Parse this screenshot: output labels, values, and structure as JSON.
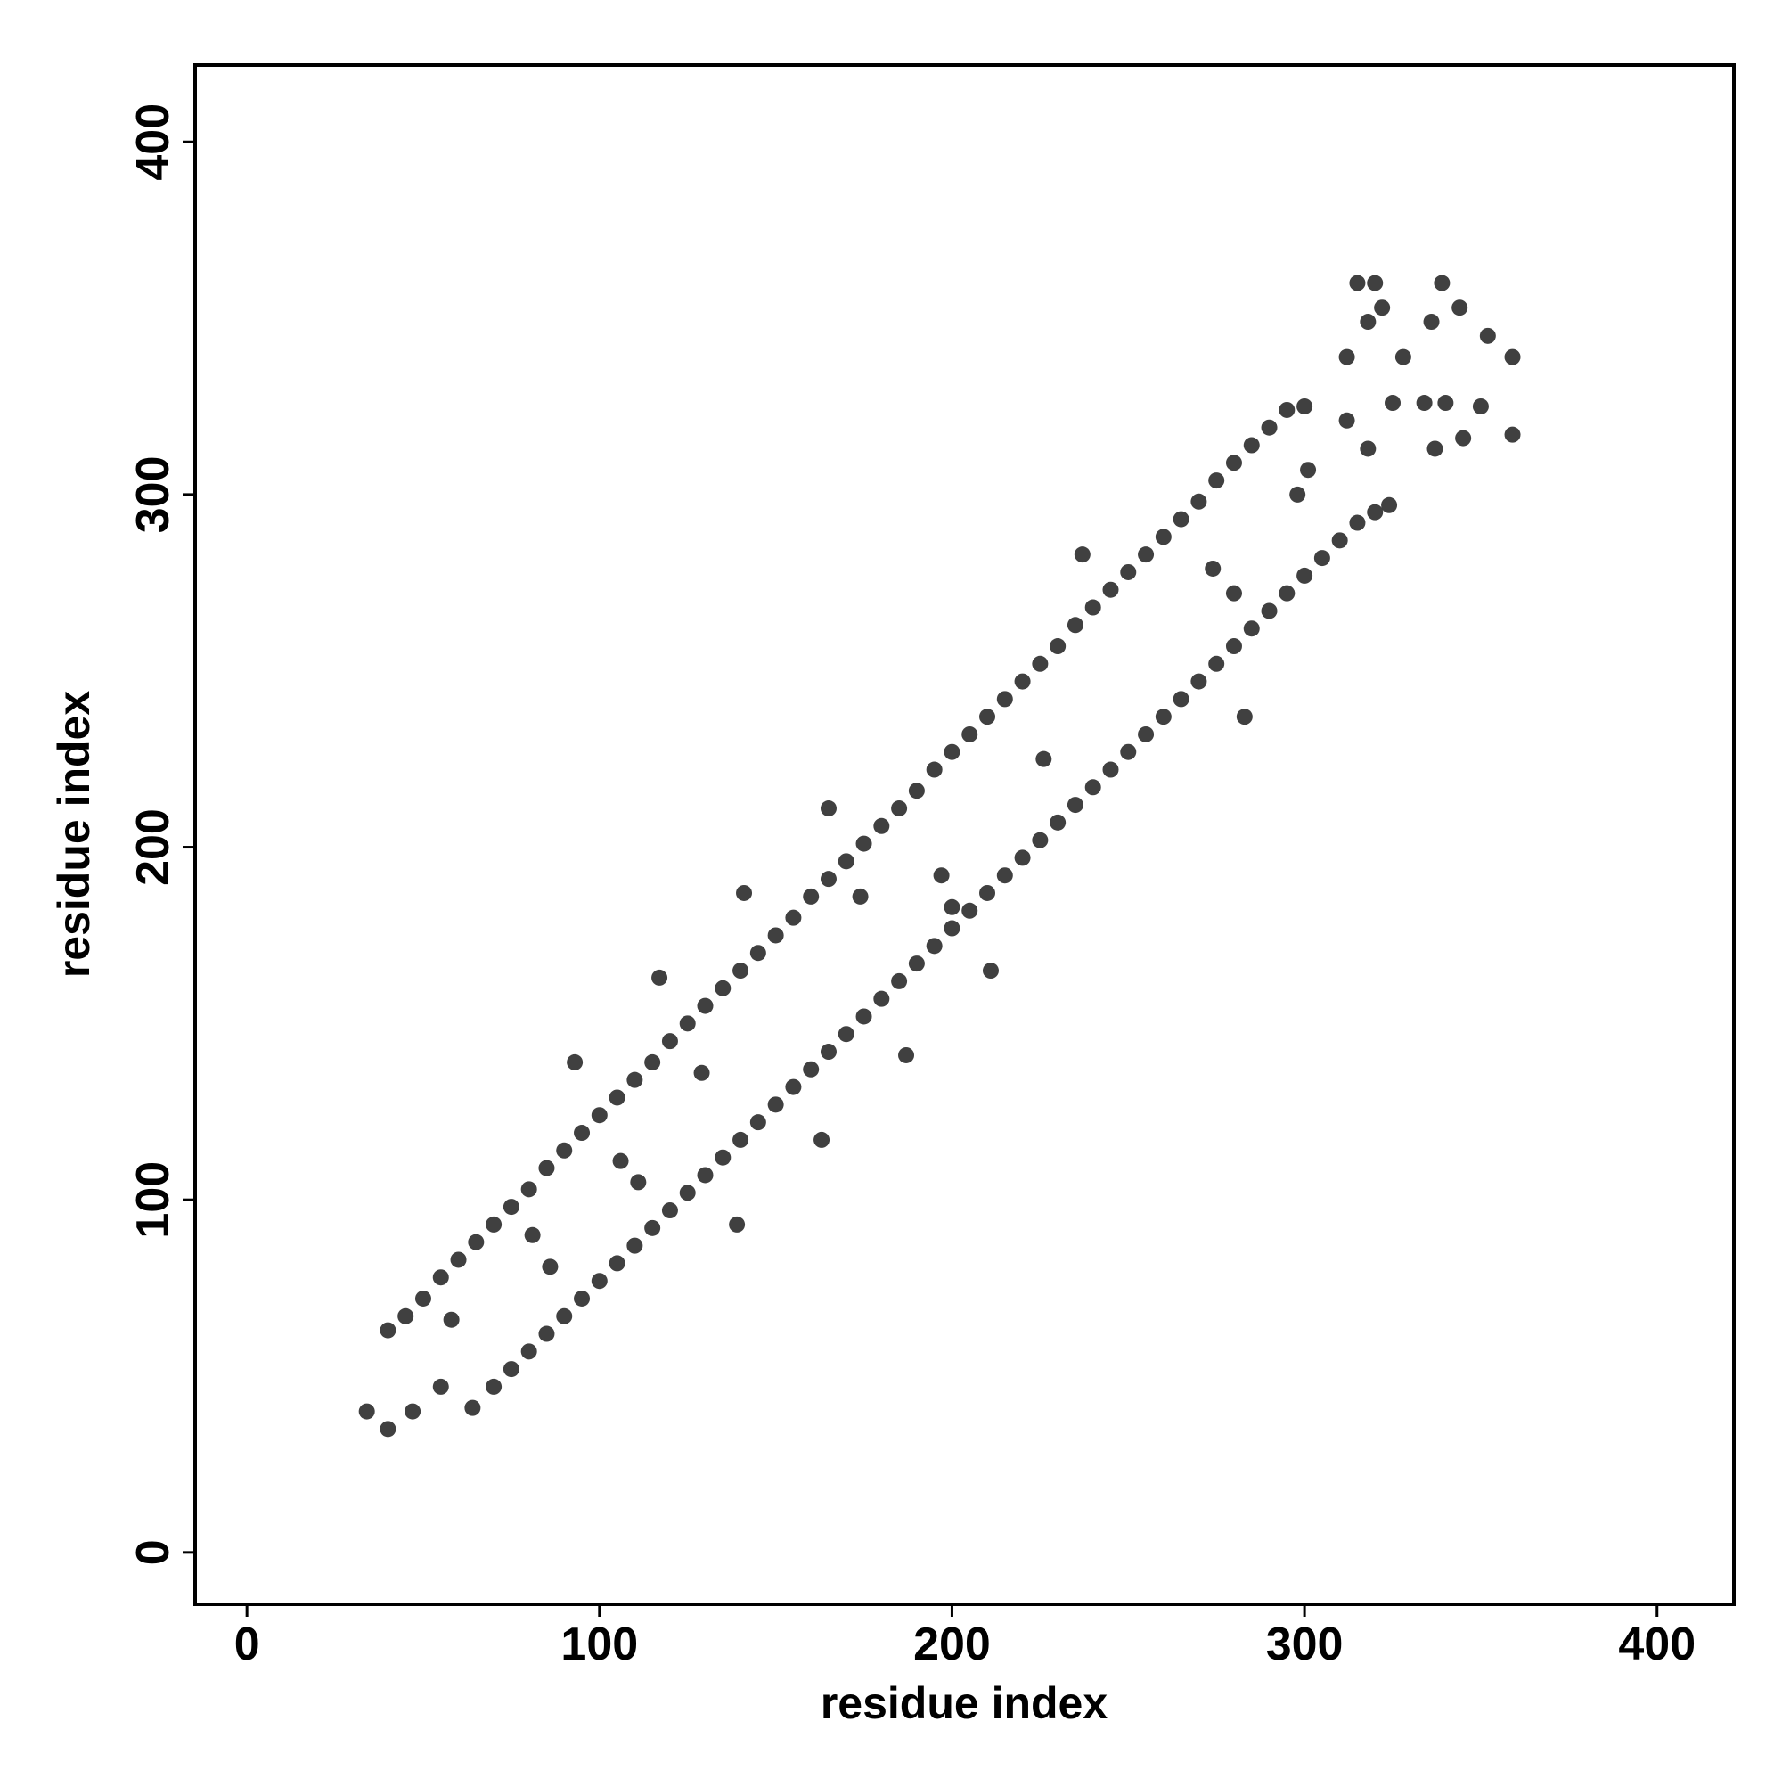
{
  "chart_data": {
    "type": "scatter",
    "xlabel": "residue index",
    "ylabel": "residue index",
    "xlim": [
      -14.7,
      421.8
    ],
    "ylim": [
      -14.7,
      421.8
    ],
    "xticks": [
      0,
      100,
      200,
      300,
      400
    ],
    "yticks": [
      0,
      100,
      200,
      300,
      400
    ],
    "color": "#2b2b2b",
    "x": [
      40,
      45,
      50,
      55,
      60,
      65,
      70,
      75,
      80,
      85,
      90,
      95,
      100,
      105,
      110,
      115,
      120,
      125,
      130,
      135,
      140,
      145,
      150,
      155,
      160,
      165,
      170,
      175,
      180,
      185,
      190,
      195,
      200,
      205,
      210,
      215,
      220,
      225,
      230,
      235,
      240,
      245,
      250,
      255,
      260,
      265,
      270,
      275,
      280,
      285,
      290,
      295,
      64,
      70,
      75,
      80,
      85,
      90,
      95,
      100,
      105,
      110,
      115,
      120,
      125,
      130,
      135,
      140,
      145,
      150,
      155,
      160,
      165,
      170,
      175,
      180,
      185,
      190,
      195,
      200,
      205,
      210,
      215,
      220,
      225,
      230,
      235,
      240,
      245,
      250,
      255,
      260,
      265,
      270,
      275,
      280,
      285,
      290,
      295,
      300,
      305,
      310,
      315,
      320,
      93,
      117,
      141,
      165,
      237,
      283,
      211,
      187,
      163,
      139,
      40,
      34,
      47,
      55,
      58,
      315,
      320,
      339,
      312,
      318,
      322,
      336,
      344,
      352,
      359,
      340,
      350,
      359,
      334,
      337,
      345,
      318,
      325,
      301,
      300,
      312,
      324,
      328,
      274,
      280,
      298,
      174,
      197,
      226,
      200,
      81,
      86,
      106,
      111,
      129
    ],
    "values": [
      63,
      67,
      72,
      78,
      83,
      88,
      93,
      98,
      103,
      109,
      114,
      119,
      124,
      129,
      134,
      139,
      145,
      150,
      155,
      160,
      165,
      170,
      175,
      180,
      186,
      191,
      196,
      201,
      206,
      211,
      216,
      222,
      227,
      232,
      237,
      242,
      247,
      252,
      257,
      263,
      268,
      273,
      278,
      283,
      288,
      293,
      298,
      304,
      309,
      314,
      319,
      324,
      41,
      47,
      52,
      57,
      62,
      67,
      72,
      77,
      82,
      87,
      92,
      97,
      102,
      107,
      112,
      117,
      122,
      127,
      132,
      137,
      142,
      147,
      152,
      157,
      162,
      167,
      172,
      177,
      182,
      187,
      192,
      197,
      202,
      207,
      212,
      217,
      222,
      227,
      232,
      237,
      242,
      247,
      252,
      257,
      262,
      267,
      272,
      277,
      282,
      287,
      292,
      295,
      139,
      163,
      187,
      211,
      283,
      237,
      165,
      141,
      117,
      93,
      35,
      40,
      40,
      47,
      66,
      360,
      360,
      360,
      339,
      349,
      353,
      349,
      353,
      345,
      339,
      326,
      325,
      317,
      326,
      313,
      316,
      313,
      326,
      307,
      325,
      321,
      297,
      339,
      279,
      272,
      300,
      186,
      192,
      225,
      183,
      90,
      81,
      111,
      105,
      136
    ]
  }
}
